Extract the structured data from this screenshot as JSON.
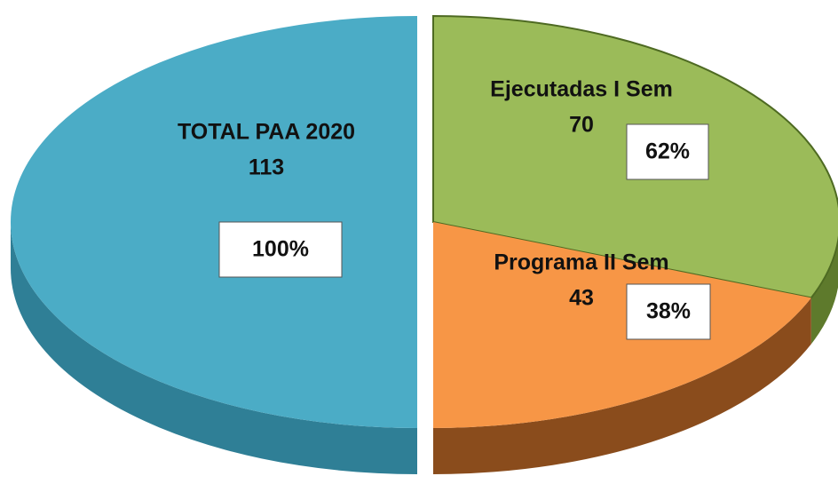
{
  "chart_data": {
    "type": "pie3d",
    "categories": [
      "TOTAL PAA 2020",
      "Ejecutadas I Sem",
      "Programa II Sem"
    ],
    "values": [
      113,
      70,
      43
    ],
    "percent_values": [
      100,
      62,
      38
    ],
    "percent_labels": [
      "100%",
      "62%",
      "38%"
    ],
    "colors": [
      "#4bacc6",
      "#9bbb59",
      "#f79646"
    ],
    "side_colors": [
      "#2f7f96",
      "#5e7a2c",
      "#8a4c1c"
    ]
  }
}
